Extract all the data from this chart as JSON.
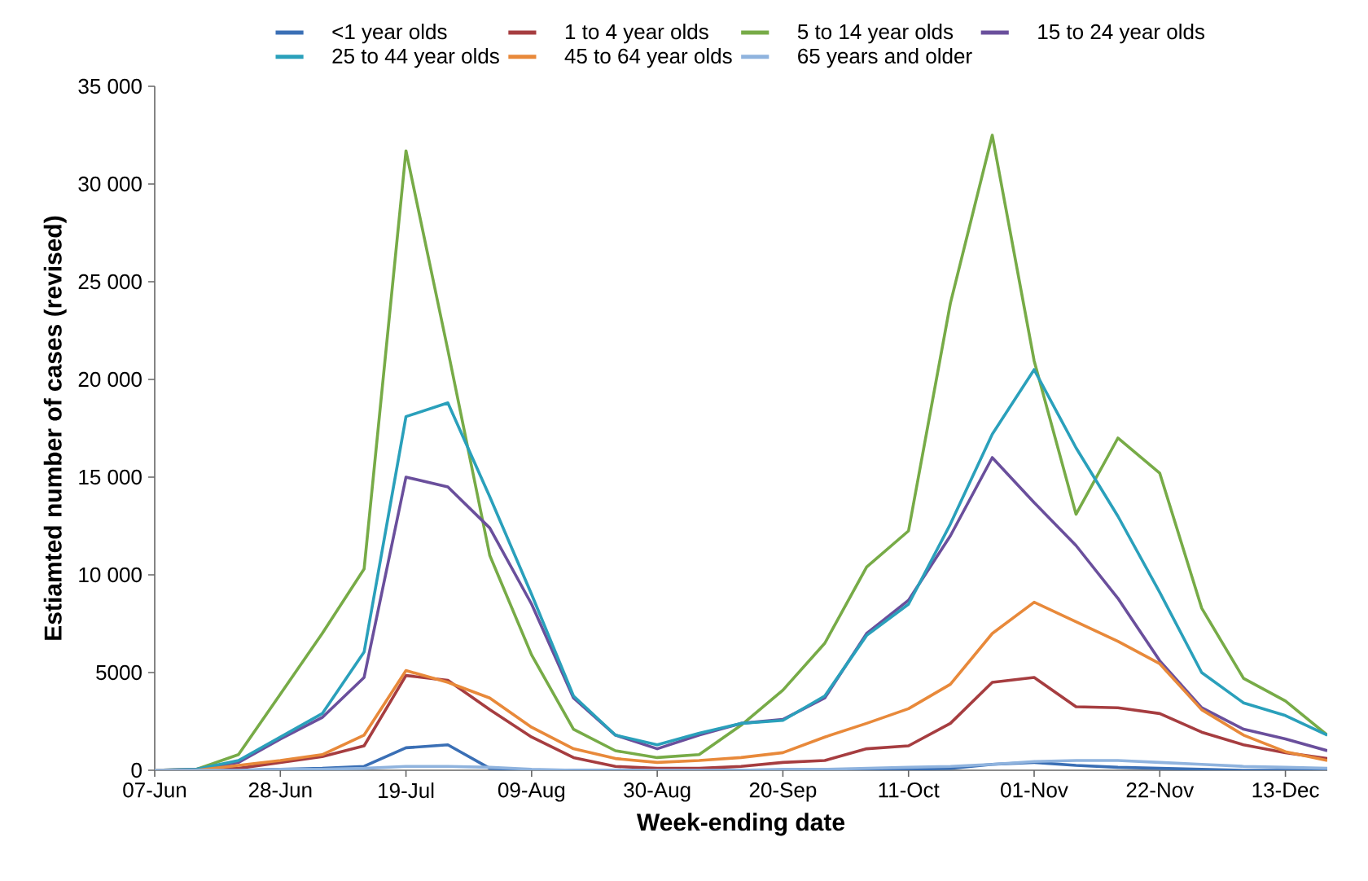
{
  "chart_data": {
    "type": "line",
    "xlabel": "Week-ending date",
    "ylabel": "Estiamted number of cases (revised)",
    "categories": [
      "07-Jun",
      null,
      null,
      "28-Jun",
      null,
      null,
      "19-Jul",
      null,
      null,
      "09-Aug",
      null,
      null,
      "30-Aug",
      null,
      null,
      "20-Sep",
      null,
      null,
      "11-Oct",
      null,
      null,
      "01-Nov",
      null,
      null,
      "22-Nov",
      null,
      null,
      "13-Dec",
      null
    ],
    "ylim": [
      0,
      35000
    ],
    "yticks": [
      0,
      5000,
      {
        "value": 10000,
        "label": "10 000"
      },
      {
        "value": 15000,
        "label": "15 000"
      },
      {
        "value": 20000,
        "label": "20 000"
      },
      {
        "value": 25000,
        "label": "25 000"
      },
      {
        "value": 30000,
        "label": "30 000"
      },
      {
        "value": 35000,
        "label": "35 000"
      }
    ],
    "legend": "top",
    "grid": false,
    "marker": "none",
    "line_style": "solid",
    "series": [
      {
        "name": "<1 year olds",
        "color": "#3a6fb5",
        "values": [
          0,
          0,
          0,
          50,
          100,
          200,
          1150,
          1300,
          100,
          0,
          0,
          0,
          0,
          0,
          0,
          0,
          0,
          0,
          50,
          100,
          300,
          400,
          250,
          150,
          100,
          50,
          0,
          0,
          0
        ]
      },
      {
        "name": "1 to 4 year olds",
        "color": "#a63d40",
        "values": [
          0,
          0,
          100,
          400,
          700,
          1250,
          4850,
          4600,
          3100,
          1700,
          650,
          200,
          100,
          100,
          200,
          400,
          500,
          1100,
          1250,
          2400,
          4500,
          4750,
          3250,
          3200,
          2900,
          1950,
          1300,
          900,
          600
        ]
      },
      {
        "name": "5 to 14 year olds",
        "color": "#77ab47",
        "values": [
          0,
          50,
          800,
          3900,
          7000,
          10300,
          31700,
          21500,
          11000,
          5900,
          2100,
          1000,
          650,
          800,
          2300,
          4100,
          6500,
          10400,
          12250,
          23900,
          32500,
          20950,
          13100,
          17000,
          15200,
          8300,
          4700,
          3550,
          1800
        ]
      },
      {
        "name": "15 to 24 year olds",
        "color": "#6a4f9c",
        "values": [
          0,
          50,
          400,
          1600,
          2700,
          4750,
          15000,
          14500,
          12400,
          8500,
          3700,
          1800,
          1100,
          1800,
          2400,
          2600,
          3700,
          7000,
          8700,
          12000,
          16000,
          13700,
          11500,
          8800,
          5600,
          3200,
          2100,
          1600,
          1000
        ]
      },
      {
        "name": "25 to 44 year olds",
        "color": "#2aa0bb",
        "values": [
          0,
          50,
          500,
          1700,
          2900,
          6050,
          18100,
          18800,
          14000,
          9000,
          3800,
          1800,
          1300,
          1900,
          2400,
          2550,
          3800,
          6900,
          8500,
          12600,
          17200,
          20500,
          16500,
          13000,
          9100,
          5000,
          3450,
          2800,
          1800
        ]
      },
      {
        "name": "45 to 64 year olds",
        "color": "#e8893a",
        "values": [
          0,
          0,
          250,
          500,
          800,
          1800,
          5100,
          4500,
          3700,
          2200,
          1100,
          600,
          400,
          500,
          650,
          900,
          1700,
          2400,
          3150,
          4400,
          7000,
          8600,
          7600,
          6600,
          5450,
          3100,
          1800,
          950,
          500
        ]
      },
      {
        "name": "65 years and older",
        "color": "#8fb3de",
        "values": [
          0,
          0,
          0,
          50,
          50,
          100,
          200,
          200,
          150,
          50,
          0,
          0,
          0,
          0,
          0,
          50,
          50,
          100,
          150,
          200,
          300,
          450,
          500,
          500,
          400,
          300,
          200,
          150,
          100
        ]
      }
    ]
  }
}
